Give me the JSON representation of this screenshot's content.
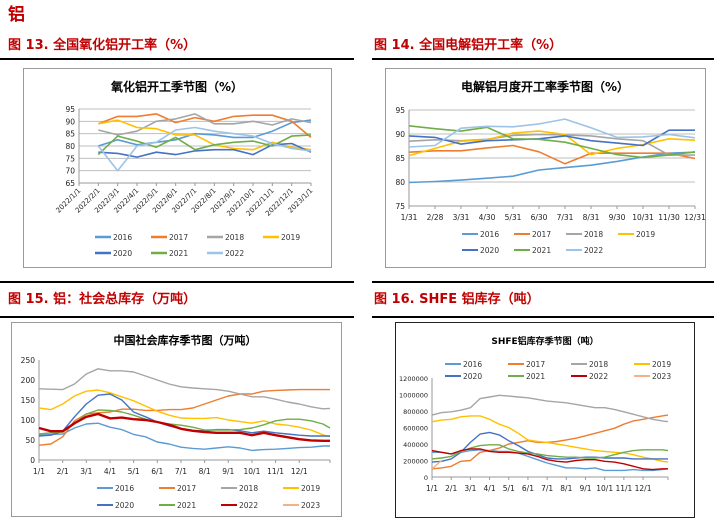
{
  "page": {
    "section_title": "铝",
    "figures": [
      {
        "label": "图 13. 全国氧化铝开工率（%）"
      },
      {
        "label": "图 14. 全国电解铝开工率（%）"
      },
      {
        "label": "图 15. 铝：社会总库存（万吨）"
      },
      {
        "label": "图 16.  SHFE 铝库存（吨）"
      }
    ]
  },
  "colors": {
    "2016": "#5b9bd5",
    "2017": "#ed7d31",
    "2018": "#a5a5a5",
    "2019": "#ffc000",
    "2020": "#4472c4",
    "2021": "#70ad47",
    "2022": "#9dc3e6",
    "2022_inv": "#c00000",
    "2023": "#f4b183"
  },
  "chart_data": [
    {
      "type": "line",
      "title": "氧化铝开工季节图（%）",
      "xlabel": "",
      "ylabel": "",
      "categories": [
        "2022/1/1",
        "2022/2/1",
        "2022/3/1",
        "2022/4/1",
        "2022/5/1",
        "2022/6/1",
        "2022/7/1",
        "2022/8/1",
        "2022/9/1",
        "2022/10/1",
        "2022/11/1",
        "2022/12/1",
        "2023/1/1"
      ],
      "yticks": [
        65,
        70,
        75,
        80,
        85,
        90,
        95
      ],
      "ylim": [
        65,
        95
      ],
      "grid": true,
      "legend": "bottom",
      "series": [
        {
          "name": "2016",
          "color": "#5b9bd5",
          "values": [
            null,
            80,
            82.5,
            80.5,
            81.5,
            82.5,
            85,
            84.5,
            83.5,
            83.5,
            86,
            89.5,
            90.5
          ]
        },
        {
          "name": "2017",
          "color": "#ed7d31",
          "values": [
            null,
            89,
            92,
            92,
            93,
            89.5,
            91.5,
            90,
            92,
            92.5,
            92.5,
            90,
            83.5
          ]
        },
        {
          "name": "2018",
          "color": "#a5a5a5",
          "values": [
            null,
            86.5,
            84.5,
            86,
            90,
            91,
            93,
            89,
            89,
            90,
            88.5,
            91,
            89.5
          ]
        },
        {
          "name": "2019",
          "color": "#ffc000",
          "values": [
            null,
            89,
            90.5,
            87.5,
            87,
            84.5,
            84.5,
            80.5,
            79,
            78.5,
            81.5,
            79.5,
            78.5
          ]
        },
        {
          "name": "2020",
          "color": "#4472c4",
          "values": [
            null,
            77.5,
            77,
            75.5,
            77.5,
            76.5,
            78,
            78.5,
            78.5,
            76.5,
            80.5,
            81,
            77.5
          ]
        },
        {
          "name": "2021",
          "color": "#70ad47",
          "values": [
            null,
            76.5,
            84,
            82,
            79.5,
            83.5,
            78.5,
            80.5,
            81.5,
            82,
            80,
            84,
            84.5
          ]
        },
        {
          "name": "2022",
          "color": "#9dc3e6",
          "values": [
            null,
            80,
            70,
            80,
            81.5,
            86.5,
            87.5,
            86,
            85,
            84,
            81,
            79,
            78
          ]
        }
      ]
    },
    {
      "type": "line",
      "title": "电解铝月度开工率季节图（%）",
      "xlabel": "",
      "ylabel": "",
      "categories": [
        "1/31",
        "2/28",
        "3/31",
        "4/30",
        "5/31",
        "6/30",
        "7/31",
        "8/31",
        "9/30",
        "10/31",
        "11/30",
        "12/31"
      ],
      "yticks": [
        75,
        80,
        85,
        90,
        95
      ],
      "ylim": [
        75,
        95
      ],
      "grid": true,
      "legend": "bottom",
      "series": [
        {
          "name": "2016",
          "color": "#5b9bd5",
          "values": [
            79.9,
            80.1,
            80.4,
            80.8,
            81.2,
            82.5,
            83,
            83.5,
            84.3,
            85.2,
            86,
            86.2
          ]
        },
        {
          "name": "2017",
          "color": "#ed7d31",
          "values": [
            86.2,
            86.5,
            86.5,
            87.1,
            87.6,
            86.3,
            83.8,
            86,
            86,
            86,
            86,
            84.9
          ]
        },
        {
          "name": "2018",
          "color": "#a5a5a5",
          "values": [
            88.5,
            88.8,
            88.6,
            88.9,
            89.7,
            89.9,
            89.8,
            89.6,
            89,
            88.6,
            85.6,
            85.6
          ]
        },
        {
          "name": "2019",
          "color": "#ffc000",
          "values": [
            85.5,
            87,
            88.5,
            88.8,
            90.2,
            90.6,
            89.9,
            85.7,
            87,
            87.8,
            89,
            88.7
          ]
        },
        {
          "name": "2020",
          "color": "#4472c4",
          "values": [
            89.6,
            89.3,
            87.9,
            88.6,
            88.8,
            89,
            89.6,
            88.6,
            88.1,
            87.6,
            90.8,
            90.8
          ]
        },
        {
          "name": "2021",
          "color": "#70ad47",
          "values": [
            91.7,
            91.1,
            90.6,
            91.4,
            89,
            88.9,
            88.3,
            87,
            85.7,
            85.1,
            85.6,
            86.3
          ]
        },
        {
          "name": "2022",
          "color": "#9dc3e6",
          "values": [
            87.3,
            87.6,
            91.2,
            91.6,
            91.5,
            92.1,
            93.1,
            91.3,
            89.3,
            89.4,
            89.9,
            89.2
          ]
        }
      ]
    },
    {
      "type": "line",
      "title": "中国社会库存季节图（万吨）",
      "xlabel": "",
      "ylabel": "",
      "x": [
        0,
        0.5,
        1,
        1.5,
        2,
        2.5,
        3,
        3.5,
        4,
        4.5,
        5,
        5.5,
        6,
        6.5,
        7,
        7.5,
        8,
        8.5,
        9,
        9.5,
        10,
        10.5,
        11,
        11.5,
        12,
        12.3
      ],
      "xticks": [
        "1/1",
        "2/1",
        "3/1",
        "4/1",
        "5/1",
        "6/1",
        "7/1",
        "8/1",
        "9/1",
        "10/1",
        "11/1",
        "12/1"
      ],
      "yticks": [
        0,
        50,
        100,
        150,
        200,
        250
      ],
      "ylim": [
        0,
        250
      ],
      "grid": false,
      "legend": "bottom",
      "series": [
        {
          "name": "2016",
          "color": "#5b9bd5",
          "values": [
            62,
            64,
            65,
            80,
            90,
            92,
            82,
            76,
            64,
            58,
            45,
            40,
            32,
            29,
            27,
            30,
            33,
            30,
            24,
            26,
            27,
            29,
            31,
            32,
            35,
            35
          ]
        },
        {
          "name": "2017",
          "color": "#ed7d31",
          "values": [
            37,
            40,
            58,
            98,
            115,
            118,
            120,
            127,
            127,
            124,
            124,
            126,
            126,
            130,
            140,
            150,
            160,
            165,
            165,
            172,
            174,
            175,
            176,
            176,
            176,
            176
          ]
        },
        {
          "name": "2018",
          "color": "#a5a5a5",
          "values": [
            178,
            177,
            176,
            190,
            215,
            228,
            223,
            223,
            220,
            210,
            200,
            190,
            183,
            180,
            178,
            176,
            172,
            165,
            158,
            158,
            152,
            145,
            140,
            133,
            128,
            129
          ]
        },
        {
          "name": "2019",
          "color": "#ffc000",
          "values": [
            130,
            126,
            140,
            160,
            172,
            175,
            168,
            158,
            148,
            135,
            122,
            112,
            105,
            104,
            104,
            106,
            100,
            96,
            92,
            98,
            90,
            87,
            82,
            75,
            63,
            58
          ]
        },
        {
          "name": "2020",
          "color": "#4472c4",
          "values": [
            60,
            62,
            72,
            108,
            140,
            162,
            165,
            150,
            120,
            108,
            95,
            85,
            78,
            74,
            73,
            76,
            76,
            73,
            68,
            72,
            68,
            65,
            62,
            60,
            60,
            60
          ]
        },
        {
          "name": "2021",
          "color": "#70ad47",
          "values": [
            65,
            68,
            70,
            90,
            115,
            125,
            124,
            120,
            112,
            102,
            95,
            90,
            87,
            82,
            75,
            75,
            75,
            76,
            80,
            88,
            98,
            102,
            102,
            98,
            90,
            80
          ]
        },
        {
          "name": "2022",
          "color": "#c00000",
          "values": [
            80,
            72,
            72,
            92,
            108,
            115,
            104,
            106,
            102,
            100,
            95,
            88,
            78,
            73,
            70,
            68,
            68,
            68,
            62,
            68,
            62,
            57,
            52,
            49,
            48,
            48
          ]
        },
        {
          "name": "2023",
          "color": "#f4b183",
          "values": [
            60,
            null,
            null,
            null,
            null,
            null,
            null,
            null,
            null,
            null,
            null,
            null,
            null,
            null,
            null,
            null,
            null,
            null,
            null,
            null,
            null,
            null,
            null,
            null,
            null,
            null
          ]
        }
      ]
    },
    {
      "type": "line",
      "title": "SHFE铝库存季节图（吨）",
      "xlabel": "",
      "ylabel": "",
      "x": [
        0,
        0.5,
        1,
        1.5,
        2,
        2.5,
        3,
        3.5,
        4,
        4.5,
        5,
        5.5,
        6,
        6.5,
        7,
        7.5,
        8,
        8.5,
        9,
        9.5,
        10,
        10.5,
        11,
        11.5,
        12,
        12.3
      ],
      "xticks": [
        "1/1",
        "2/1",
        "3/1",
        "4/1",
        "5/1",
        "6/1",
        "7/1",
        "8/1",
        "9/1",
        "10/1",
        "11/1",
        "12/1"
      ],
      "yticks": [
        0,
        200000,
        400000,
        600000,
        800000,
        1000000,
        1200000
      ],
      "ylim": [
        0,
        1200000
      ],
      "grid": false,
      "legend": "top",
      "series": [
        {
          "name": "2016",
          "color": "#5b9bd5",
          "values": [
            300000,
            300000,
            280000,
            300000,
            320000,
            330000,
            320000,
            310000,
            310000,
            290000,
            250000,
            210000,
            170000,
            140000,
            110000,
            110000,
            100000,
            110000,
            80000,
            80000,
            80000,
            90000,
            80000,
            80000,
            90000,
            100000
          ]
        },
        {
          "name": "2017",
          "color": "#ed7d31",
          "values": [
            100000,
            110000,
            130000,
            190000,
            200000,
            300000,
            320000,
            350000,
            400000,
            420000,
            440000,
            420000,
            420000,
            430000,
            450000,
            470000,
            500000,
            530000,
            560000,
            590000,
            640000,
            680000,
            700000,
            720000,
            740000,
            750000
          ]
        },
        {
          "name": "2018",
          "color": "#a5a5a5",
          "values": [
            750000,
            780000,
            790000,
            810000,
            840000,
            950000,
            970000,
            990000,
            980000,
            970000,
            960000,
            940000,
            920000,
            910000,
            900000,
            880000,
            860000,
            840000,
            840000,
            820000,
            790000,
            760000,
            730000,
            700000,
            680000,
            670000
          ]
        },
        {
          "name": "2019",
          "color": "#ffc000",
          "values": [
            670000,
            690000,
            700000,
            730000,
            740000,
            740000,
            700000,
            640000,
            600000,
            530000,
            450000,
            430000,
            420000,
            400000,
            380000,
            360000,
            340000,
            320000,
            310000,
            300000,
            290000,
            270000,
            240000,
            220000,
            190000,
            180000
          ]
        },
        {
          "name": "2020",
          "color": "#4472c4",
          "values": [
            180000,
            190000,
            220000,
            300000,
            420000,
            520000,
            540000,
            510000,
            440000,
            380000,
            310000,
            270000,
            230000,
            220000,
            220000,
            230000,
            240000,
            240000,
            230000,
            230000,
            230000,
            220000,
            220000,
            220000,
            220000,
            220000
          ]
        },
        {
          "name": "2021",
          "color": "#70ad47",
          "values": [
            220000,
            230000,
            250000,
            310000,
            350000,
            380000,
            390000,
            390000,
            340000,
            310000,
            290000,
            280000,
            260000,
            250000,
            240000,
            240000,
            230000,
            230000,
            240000,
            270000,
            300000,
            320000,
            330000,
            330000,
            330000,
            320000
          ]
        },
        {
          "name": "2022",
          "color": "#c00000",
          "values": [
            320000,
            300000,
            280000,
            320000,
            340000,
            340000,
            310000,
            300000,
            300000,
            290000,
            280000,
            250000,
            210000,
            190000,
            180000,
            200000,
            210000,
            210000,
            190000,
            180000,
            160000,
            130000,
            100000,
            90000,
            100000,
            100000
          ]
        },
        {
          "name": "2023",
          "color": "#f4b183",
          "values": [
            100000,
            200000,
            null,
            null,
            null,
            null,
            null,
            null,
            null,
            null,
            null,
            null,
            null,
            null,
            null,
            null,
            null,
            null,
            null,
            null,
            null,
            null,
            null,
            null,
            null,
            null
          ]
        }
      ]
    }
  ]
}
